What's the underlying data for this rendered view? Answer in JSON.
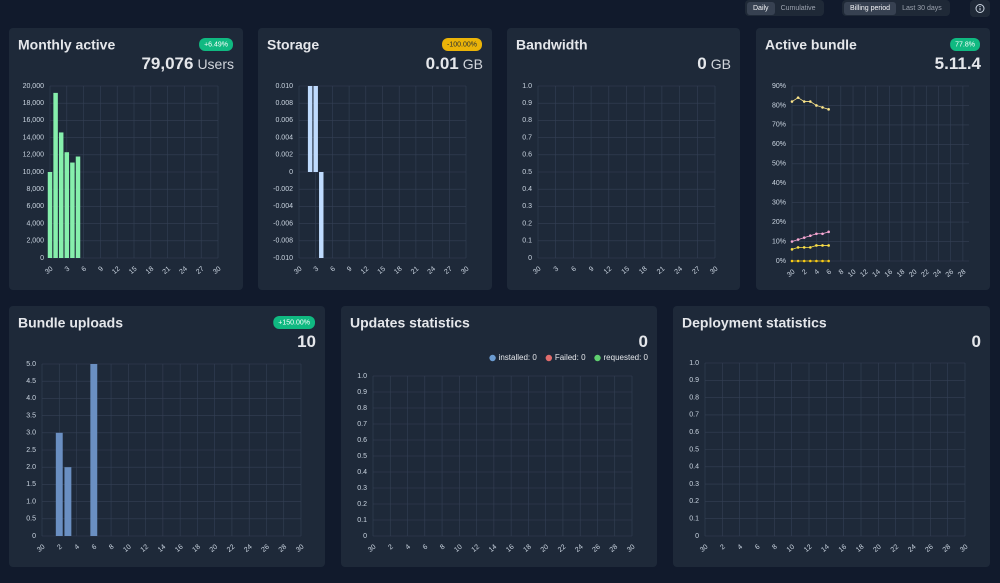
{
  "controls": {
    "mode": [
      "Daily",
      "Cumulative"
    ],
    "period": [
      "Billing period",
      "Last 30 days"
    ]
  },
  "chart_data": [
    {
      "type": "bar",
      "title": "Monthly active",
      "badge": "+6.49%",
      "value": "79,076",
      "unit": "Users",
      "color": "#86efac",
      "categories": [
        "30",
        null,
        null,
        "3",
        null,
        null,
        "6",
        null,
        null,
        "9",
        null,
        null,
        "12",
        null,
        null,
        "15",
        null,
        null,
        "18",
        null,
        null,
        "21",
        null,
        null,
        "24",
        null,
        null,
        "27",
        null,
        null,
        "30"
      ],
      "values": [
        10000,
        19200,
        14600,
        12300,
        11100,
        11800,
        null,
        null,
        null,
        null,
        null,
        null,
        null,
        null,
        null,
        null,
        null,
        null,
        null,
        null,
        null,
        null,
        null,
        null,
        null,
        null,
        null,
        null,
        null,
        null,
        null
      ],
      "ylim": [
        0,
        20000
      ],
      "yticks": [
        0,
        {
          "value": 2000,
          "label": "2,000"
        },
        {
          "value": 4000,
          "label": "4,000"
        },
        {
          "value": 6000,
          "label": "6,000"
        },
        {
          "value": 8000,
          "label": "8,000"
        },
        {
          "value": 10000,
          "label": "10,000"
        },
        {
          "value": 12000,
          "label": "12,000"
        },
        {
          "value": 14000,
          "label": "14,000"
        },
        {
          "value": 16000,
          "label": "16,000"
        },
        {
          "value": 18000,
          "label": "18,000"
        },
        {
          "value": 20000,
          "label": "20,000"
        }
      ],
      "grid": true
    },
    {
      "type": "bar",
      "title": "Storage",
      "badge": "-100.00%",
      "value": 0.01,
      "unit": "GB",
      "color": "#bfdbfe",
      "categories": [
        "30",
        null,
        null,
        "3",
        null,
        null,
        "6",
        null,
        null,
        "9",
        null,
        null,
        "12",
        null,
        null,
        "15",
        null,
        null,
        "18",
        null,
        null,
        "21",
        null,
        null,
        "24",
        null,
        null,
        "27",
        null,
        null,
        "30"
      ],
      "values": [
        null,
        null,
        0.01,
        0.01,
        -0.01,
        null,
        null,
        null,
        null,
        null,
        null,
        null,
        null,
        null,
        null,
        null,
        null,
        null,
        null,
        null,
        null,
        null,
        null,
        null,
        null,
        null,
        null,
        null,
        null,
        null,
        null
      ],
      "ylim": [
        -0.01,
        0.01
      ],
      "yticks": [
        {
          "value": -0.01,
          "label": "-0.010"
        },
        {
          "value": -0.008,
          "label": "-0.008"
        },
        {
          "value": -0.006,
          "label": "-0.006"
        },
        {
          "value": -0.004,
          "label": "-0.004"
        },
        {
          "value": -0.002,
          "label": "-0.002"
        },
        0,
        {
          "value": 0.002,
          "label": "0.002"
        },
        {
          "value": 0.004,
          "label": "0.004"
        },
        {
          "value": 0.006,
          "label": "0.006"
        },
        {
          "value": 0.008,
          "label": "0.008"
        },
        {
          "value": 0.01,
          "label": "0.010"
        }
      ],
      "grid": true
    },
    {
      "type": "bar",
      "title": "Bandwidth",
      "value": 0,
      "unit": "GB",
      "categories": [
        "30",
        null,
        null,
        "3",
        null,
        null,
        "6",
        null,
        null,
        "9",
        null,
        null,
        "12",
        null,
        null,
        "15",
        null,
        null,
        "18",
        null,
        null,
        "21",
        null,
        null,
        "24",
        null,
        null,
        "27",
        null,
        null,
        "30"
      ],
      "ylim": [
        0,
        1
      ],
      "yticks": [
        0,
        0.1,
        0.2,
        0.3,
        0.4,
        0.5,
        0.6,
        0.7,
        0.8,
        0.9,
        {
          "value": 1,
          "label": "1.0"
        }
      ],
      "grid": true
    },
    {
      "type": "line",
      "title": "Active bundle",
      "badge": "77.8%",
      "value": "5.11.4",
      "categories": [
        "30",
        null,
        "2",
        null,
        "4",
        null,
        "6",
        null,
        "8",
        null,
        "10",
        null,
        "12",
        null,
        "14",
        null,
        "16",
        null,
        "18",
        null,
        "20",
        null,
        "22",
        null,
        "24",
        null,
        "26",
        null,
        "28",
        null
      ],
      "series": [
        {
          "color": "#fde68a",
          "values": [
            82,
            84,
            82,
            82,
            80,
            79,
            78,
            null,
            null,
            null,
            null,
            null,
            null,
            null,
            null,
            null,
            null,
            null,
            null,
            null,
            null,
            null,
            null,
            null,
            null,
            null,
            null,
            null,
            null,
            null
          ]
        },
        {
          "color": "#f9a8d4",
          "values": [
            10,
            11,
            12,
            13,
            14,
            14,
            15,
            null,
            null,
            null,
            null,
            null,
            null,
            null,
            null,
            null,
            null,
            null,
            null,
            null,
            null,
            null,
            null,
            null,
            null,
            null,
            null,
            null,
            null,
            null
          ]
        },
        {
          "color": "#fde047",
          "values": [
            6,
            7,
            7,
            7,
            8,
            8,
            8,
            null,
            null,
            null,
            null,
            null,
            null,
            null,
            null,
            null,
            null,
            null,
            null,
            null,
            null,
            null,
            null,
            null,
            null,
            null,
            null,
            null,
            null,
            null
          ]
        },
        {
          "color": "#facc15",
          "values": [
            0,
            0,
            0,
            0,
            0,
            0,
            0,
            null,
            null,
            null,
            null,
            null,
            null,
            null,
            null,
            null,
            null,
            null,
            null,
            null,
            null,
            null,
            null,
            null,
            null,
            null,
            null,
            null,
            null,
            null
          ]
        }
      ],
      "ylim": [
        0,
        90
      ],
      "yticks": [
        {
          "value": 0,
          "label": "0%"
        },
        {
          "value": 10,
          "label": "10%"
        },
        {
          "value": 20,
          "label": "20%"
        },
        {
          "value": 30,
          "label": "30%"
        },
        {
          "value": 40,
          "label": "40%"
        },
        {
          "value": 50,
          "label": "50%"
        },
        {
          "value": 60,
          "label": "60%"
        },
        {
          "value": 70,
          "label": "70%"
        },
        {
          "value": 80,
          "label": "80%"
        },
        {
          "value": 90,
          "label": "90%"
        }
      ],
      "grid": true
    },
    {
      "type": "bar",
      "title": "Bundle uploads",
      "badge": "+150.00%",
      "value": 10,
      "color": "#6a8fc2",
      "categories": [
        "30",
        null,
        "2",
        null,
        "4",
        null,
        "6",
        null,
        "8",
        null,
        "10",
        null,
        "12",
        null,
        "14",
        null,
        "16",
        null,
        "18",
        null,
        "20",
        null,
        "22",
        null,
        "24",
        null,
        "26",
        null,
        "28",
        null,
        "30"
      ],
      "values": [
        null,
        null,
        3,
        2,
        null,
        null,
        5,
        null,
        null,
        null,
        null,
        null,
        null,
        null,
        null,
        null,
        null,
        null,
        null,
        null,
        null,
        null,
        null,
        null,
        null,
        null,
        null,
        null,
        null,
        null,
        null
      ],
      "ylim": [
        0,
        5
      ],
      "yticks": [
        0,
        0.5,
        {
          "value": 1,
          "label": "1.0"
        },
        1.5,
        {
          "value": 2,
          "label": "2.0"
        },
        2.5,
        {
          "value": 3,
          "label": "3.0"
        },
        3.5,
        {
          "value": 4,
          "label": "4.0"
        },
        4.5,
        {
          "value": 5,
          "label": "5.0"
        }
      ],
      "grid": true
    },
    {
      "type": "bar",
      "title": "Updates statistics",
      "value": 0,
      "series": [
        {
          "name": "installed: 0",
          "color": "#6b9bd1"
        },
        {
          "name": "Failed: 0",
          "color": "#e06c6c"
        },
        {
          "name": "requested: 0",
          "color": "#5fcf6f"
        }
      ],
      "categories": [
        "30",
        null,
        "2",
        null,
        "4",
        null,
        "6",
        null,
        "8",
        null,
        "10",
        null,
        "12",
        null,
        "14",
        null,
        "16",
        null,
        "18",
        null,
        "20",
        null,
        "22",
        null,
        "24",
        null,
        "26",
        null,
        "28",
        null,
        "30"
      ],
      "ylim": [
        0,
        1
      ],
      "yticks": [
        0,
        0.1,
        0.2,
        0.3,
        0.4,
        0.5,
        0.6,
        0.7,
        0.8,
        0.9,
        {
          "value": 1,
          "label": "1.0"
        }
      ],
      "grid": true
    },
    {
      "type": "bar",
      "title": "Deployment statistics",
      "value": 0,
      "categories": [
        "30",
        null,
        "2",
        null,
        "4",
        null,
        "6",
        null,
        "8",
        null,
        "10",
        null,
        "12",
        null,
        "14",
        null,
        "16",
        null,
        "18",
        null,
        "20",
        null,
        "22",
        null,
        "24",
        null,
        "26",
        null,
        "28",
        null,
        "30"
      ],
      "ylim": [
        0,
        1
      ],
      "yticks": [
        0,
        0.1,
        0.2,
        0.3,
        0.4,
        0.5,
        0.6,
        0.7,
        0.8,
        0.9,
        {
          "value": 1,
          "label": "1.0"
        }
      ],
      "grid": true
    }
  ]
}
